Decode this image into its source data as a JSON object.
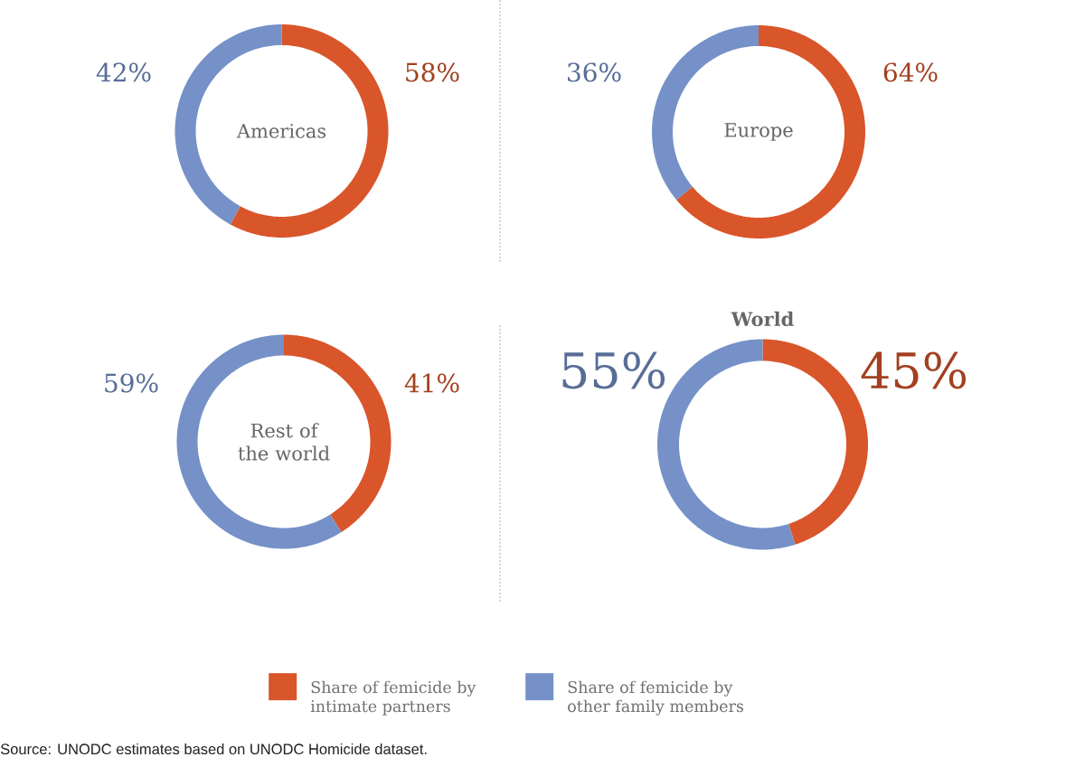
{
  "chart_data": [
    {
      "type": "donut",
      "title": "Americas",
      "categories": [
        null,
        null
      ],
      "values": [
        58,
        42
      ],
      "colors": [
        "#d9552a",
        "#7591c8"
      ],
      "value_labels": [
        "58%",
        "42%"
      ]
    },
    {
      "type": "donut",
      "title": "Europe",
      "categories": [
        null,
        null
      ],
      "values": [
        64,
        36
      ],
      "colors": [
        "#d9552a",
        "#7591c8"
      ],
      "value_labels": [
        "64%",
        "36%"
      ]
    },
    {
      "type": "donut",
      "title": "Rest of the world",
      "categories": [
        null,
        null
      ],
      "values": [
        41,
        59
      ],
      "colors": [
        "#d9552a",
        "#7591c8"
      ],
      "value_labels": [
        "41%",
        "59%"
      ]
    },
    {
      "type": "donut",
      "title": "World",
      "categories": [
        "Share of femicide by intimate partners",
        "Share of femicide by other family members"
      ],
      "values": [
        45,
        55
      ],
      "colors": [
        "#d9552a",
        "#7591c8"
      ],
      "value_labels": [
        "45%",
        "55%"
      ],
      "legend": "bottom",
      "annotations": [
        "Source: UNODC estimates based on UNODC Homicide dataset."
      ]
    }
  ]
}
